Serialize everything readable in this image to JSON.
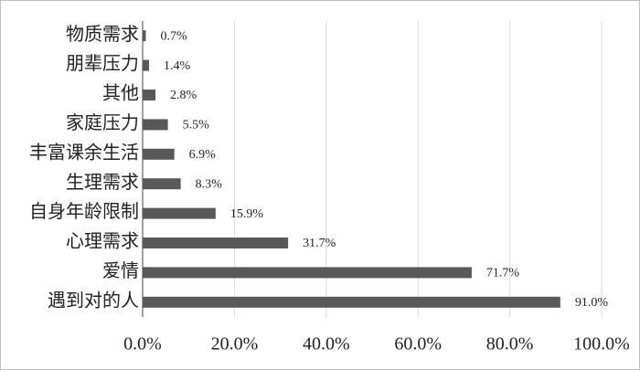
{
  "chart_data": {
    "type": "hbar",
    "categories": [
      "物质需求",
      "朋辈压力",
      "其他",
      "家庭压力",
      "丰富课余生活",
      "生理需求",
      "自身年龄限制",
      "心理需求",
      "爱情",
      "遇到对的人"
    ],
    "values": [
      0.7,
      1.4,
      2.8,
      5.5,
      6.9,
      8.3,
      15.9,
      31.7,
      71.7,
      91.0
    ],
    "value_labels": [
      "0.7%",
      "1.4%",
      "2.8%",
      "5.5%",
      "6.9%",
      "8.3%",
      "15.9%",
      "31.7%",
      "71.7%",
      "91.0%"
    ],
    "color": "#595959",
    "xlim": [
      0,
      100
    ],
    "xticks": [
      {
        "value": 0,
        "label": "0.0%"
      },
      {
        "value": 20,
        "label": "20.0%"
      },
      {
        "value": 40,
        "label": "40.0%"
      },
      {
        "value": 60,
        "label": "60.0%"
      },
      {
        "value": 80,
        "label": "80.0%"
      },
      {
        "value": 100,
        "label": "100.0%"
      }
    ],
    "grid": true
  }
}
